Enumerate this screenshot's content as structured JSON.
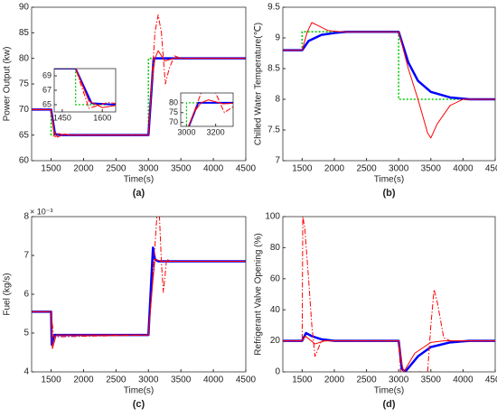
{
  "chart_data": [
    {
      "type": "line",
      "caption": "(a)",
      "xlabel": "Time(s)",
      "ylabel": "Power Output (kw)",
      "xlim": [
        1200,
        4500
      ],
      "xticks": [
        1500,
        2000,
        2500,
        3000,
        3500,
        4000,
        4500
      ],
      "ylim": [
        60,
        90
      ],
      "yticks": [
        60,
        65,
        70,
        75,
        80,
        85,
        90
      ],
      "series": [
        {
          "color": "#00cc00",
          "style": "dotted",
          "x": [
            1200,
            1500,
            1500,
            3000,
            3000,
            4500
          ],
          "values": [
            70,
            70,
            65,
            65,
            80,
            80
          ]
        },
        {
          "color": "#0000ff",
          "style": "thick",
          "x": [
            1200,
            1500,
            1560,
            1650,
            3000,
            3080,
            4500
          ],
          "values": [
            70,
            70,
            65.2,
            65,
            65,
            80,
            80
          ]
        },
        {
          "color": "#ff0000",
          "style": "solid",
          "x": [
            1200,
            1500,
            1550,
            1600,
            1700,
            1800,
            3000,
            3050,
            3100,
            3150,
            3250,
            3400,
            4500
          ],
          "values": [
            70,
            70,
            65.5,
            64.6,
            65.2,
            65,
            65,
            75,
            80,
            81.5,
            79.5,
            80,
            80
          ]
        },
        {
          "color": "#ff0000",
          "style": "dashdot",
          "x": [
            1200,
            1500,
            1550,
            1620,
            1700,
            3000,
            3050,
            3100,
            3150,
            3200,
            3260,
            3320,
            3400,
            3500,
            4500
          ],
          "values": [
            70,
            70,
            64.5,
            65.3,
            65,
            65,
            75,
            85,
            88.5,
            85,
            75,
            78,
            80.5,
            80,
            80
          ]
        }
      ],
      "insets": [
        {
          "xlim": [
            1420,
            1650
          ],
          "xticks": [
            1450,
            1600
          ],
          "ylim": [
            64,
            70
          ],
          "yticks": [
            65,
            67,
            69
          ]
        },
        {
          "xlim": [
            2960,
            3320
          ],
          "xticks": [
            3000,
            3200
          ],
          "ylim": [
            68,
            85
          ],
          "yticks": [
            70,
            75,
            80
          ]
        }
      ]
    },
    {
      "type": "line",
      "caption": "(b)",
      "xlabel": "Time(s)",
      "ylabel": "Chilled Water Temperature(℃)",
      "xlim": [
        1200,
        4500
      ],
      "xticks": [
        1500,
        2000,
        2500,
        3000,
        3500,
        4000,
        4500
      ],
      "ylim": [
        7,
        9.5
      ],
      "yticks": [
        7,
        7.5,
        8,
        8.5,
        9,
        9.5
      ],
      "series": [
        {
          "color": "#00cc00",
          "style": "dotted",
          "x": [
            1200,
            1500,
            1500,
            3000,
            3000,
            4500
          ],
          "values": [
            8.8,
            8.8,
            9.1,
            9.1,
            8,
            8
          ]
        },
        {
          "color": "#0000ff",
          "style": "thick",
          "x": [
            1200,
            1500,
            1600,
            1800,
            2000,
            2200,
            3000,
            3150,
            3300,
            3500,
            3800,
            4100,
            4500
          ],
          "values": [
            8.8,
            8.8,
            8.95,
            9.05,
            9.08,
            9.1,
            9.1,
            8.6,
            8.3,
            8.12,
            8.03,
            8,
            8
          ]
        },
        {
          "color": "#ff0000",
          "style": "solid",
          "x": [
            1200,
            1500,
            1580,
            1650,
            1750,
            1900,
            2100,
            3000,
            3150,
            3300,
            3450,
            3500,
            3600,
            3800,
            4000,
            4500
          ],
          "values": [
            8.8,
            8.8,
            9.1,
            9.25,
            9.2,
            9.12,
            9.1,
            9.1,
            8.5,
            8,
            7.45,
            7.37,
            7.6,
            7.9,
            8,
            8
          ]
        }
      ]
    },
    {
      "type": "line",
      "caption": "(c)",
      "xlabel": "Time(s)",
      "ylabel": "Fuel (kg/s)",
      "y_multiplier": "× 10⁻³",
      "xlim": [
        1200,
        4500
      ],
      "xticks": [
        1500,
        2000,
        2500,
        3000,
        3500,
        4000,
        4500
      ],
      "ylim": [
        4,
        8
      ],
      "yticks": [
        4,
        5,
        6,
        7,
        8
      ],
      "series": [
        {
          "color": "#0000ff",
          "style": "thick",
          "x": [
            1200,
            1500,
            1510,
            1550,
            3000,
            3070,
            3100,
            3150,
            4500
          ],
          "values": [
            5.55,
            5.55,
            4.7,
            4.95,
            4.95,
            7.2,
            6.9,
            6.85,
            6.85
          ]
        },
        {
          "color": "#ff0000",
          "style": "solid",
          "x": [
            1200,
            1500,
            1520,
            1580,
            3000,
            3060,
            3100,
            3200,
            4500
          ],
          "values": [
            5.55,
            5.55,
            4.6,
            4.95,
            4.95,
            6.2,
            6.9,
            6.85,
            6.85
          ]
        },
        {
          "color": "#ff0000",
          "style": "dashdot",
          "x": [
            1200,
            1500,
            1540,
            3000,
            3050,
            3130,
            3170,
            3200,
            3230,
            3280,
            3350,
            4500
          ],
          "values": [
            5.55,
            5.55,
            4.9,
            4.95,
            6,
            8,
            8,
            6.8,
            6.05,
            6.9,
            6.85,
            6.85
          ]
        }
      ]
    },
    {
      "type": "line",
      "caption": "(d)",
      "xlabel": "Time(s)",
      "ylabel": "Refrigerant Valve Opening (%)",
      "xlim": [
        1200,
        4500
      ],
      "xticks": [
        1500,
        2000,
        2500,
        3000,
        3500,
        4000,
        4500
      ],
      "ylim": [
        0,
        100
      ],
      "yticks": [
        0,
        20,
        40,
        60,
        80,
        100
      ],
      "series": [
        {
          "color": "#0000ff",
          "style": "thick",
          "x": [
            1200,
            1500,
            1560,
            1650,
            1800,
            2000,
            3000,
            3050,
            3100,
            3300,
            3500,
            3800,
            4100,
            4500
          ],
          "values": [
            20,
            20,
            25,
            23,
            21,
            20,
            20,
            2,
            0,
            10,
            16,
            19,
            20,
            20
          ]
        },
        {
          "color": "#ff0000",
          "style": "solid",
          "x": [
            1200,
            1500,
            1550,
            1700,
            1850,
            3000,
            3050,
            3080,
            3250,
            3500,
            3700,
            4500
          ],
          "values": [
            20,
            20,
            23,
            18,
            20,
            20,
            5,
            0,
            12,
            19,
            20,
            20
          ]
        },
        {
          "color": "#ff0000",
          "style": "dashdot",
          "x": [
            1200,
            1500,
            1510,
            1540,
            1600,
            1650,
            1700,
            1800,
            3000,
            3030,
            3450,
            3500,
            3550,
            3600,
            3700,
            3800,
            4500
          ],
          "values": [
            20,
            20,
            100,
            93,
            60,
            30,
            10,
            20,
            20,
            0,
            0,
            30,
            53,
            45,
            22,
            20,
            20
          ]
        }
      ]
    }
  ]
}
